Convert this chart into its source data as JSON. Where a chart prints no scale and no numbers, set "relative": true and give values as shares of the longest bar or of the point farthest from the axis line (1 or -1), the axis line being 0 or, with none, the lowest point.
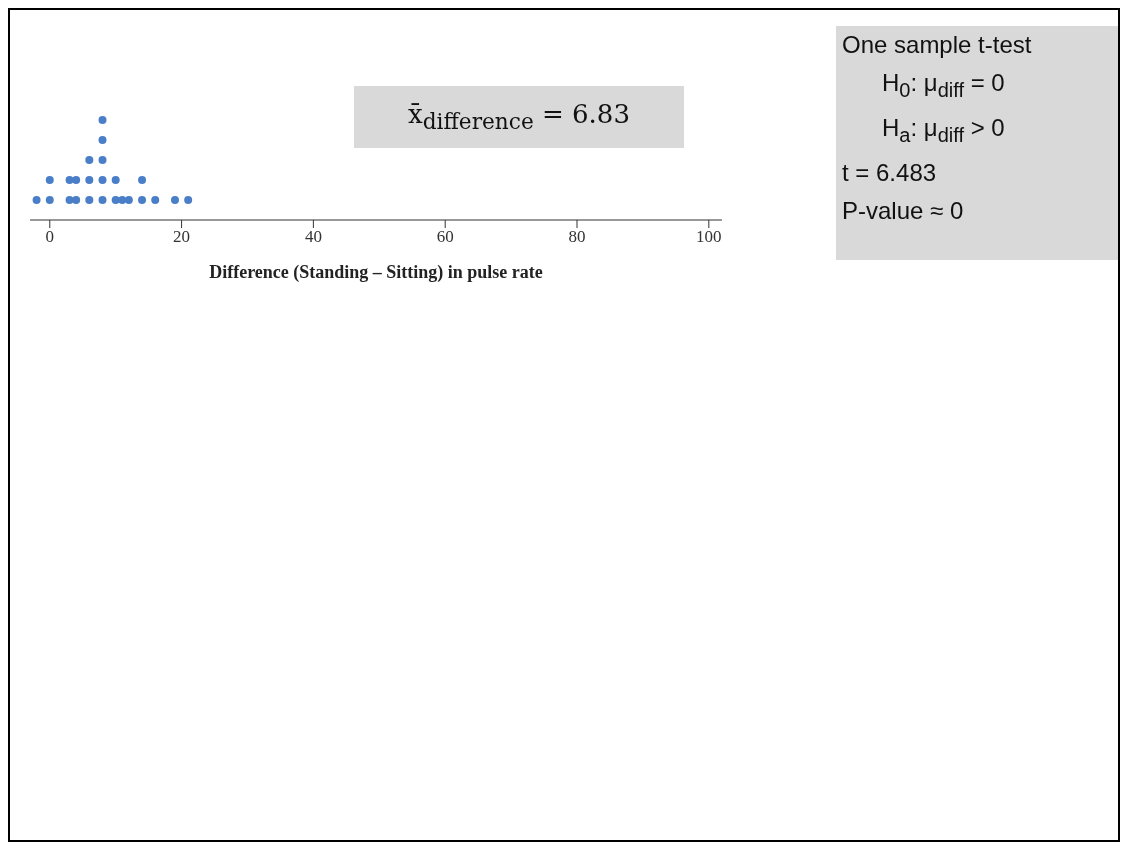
{
  "chart_data": {
    "type": "scatter",
    "xlabel": "Difference (Standing – Sitting) in pulse rate",
    "relative": true,
    "marker": "circle",
    "x": [
      -2,
      0,
      0,
      3,
      3,
      4,
      4,
      6,
      6,
      6,
      8,
      8,
      8,
      8,
      8,
      10,
      10,
      11,
      12,
      14,
      14,
      16,
      19,
      21
    ],
    "series": [
      {
        "color": "#4a7ec8",
        "values": [
          0.2,
          0.2,
          0.4,
          0.2,
          0.4,
          0.2,
          0.4,
          0.2,
          0.4,
          0.6,
          0.2,
          0.4,
          0.6,
          0.8,
          1,
          0.2,
          0.4,
          0.2,
          0.2,
          0.2,
          0.4,
          0.2,
          0.2,
          0.2
        ]
      }
    ],
    "xlim": [
      -3,
      102
    ],
    "xticks": [
      0,
      20,
      40,
      60,
      80,
      100
    ],
    "grid": false,
    "annotations": [
      "x̄$_{difference}$ = 6.83",
      "One sample t-test",
      "H$_{0}$: μ$_{diff}$ = 0",
      "H$_{a}$: μ$_{diff}$ > 0",
      "t = 6.483",
      "P-value ≈ 0"
    ]
  }
}
